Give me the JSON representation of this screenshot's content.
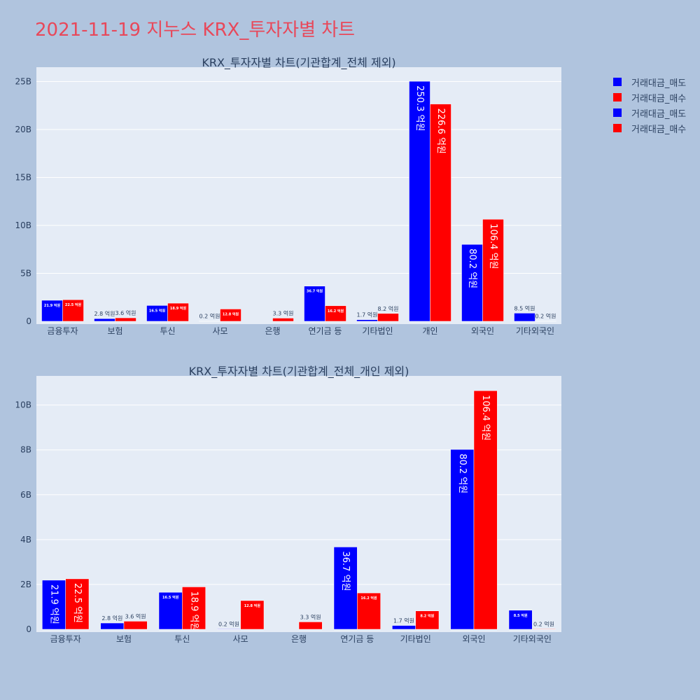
{
  "page_title": "2021-11-19 지누스 KRX_투자자별 차트",
  "colors": {
    "sell": "#0000ff",
    "buy": "#ff0000",
    "plot_bg": "#e5ecf6",
    "page_bg": "#b0c4de"
  },
  "legend": [
    {
      "label": "거래대금_매도",
      "color": "#0000ff"
    },
    {
      "label": "거래대금_매수",
      "color": "#ff0000"
    },
    {
      "label": "거래대금_매도",
      "color": "#0000ff"
    },
    {
      "label": "거래대금_매수",
      "color": "#ff0000"
    }
  ],
  "chart_data": [
    {
      "type": "bar",
      "title": "KRX_투자자별 차트(기관합계_전체 제외)",
      "categories": [
        "금융투자",
        "보험",
        "투신",
        "사모",
        "은행",
        "연기금 등",
        "기타법인",
        "개인",
        "외국인",
        "기타외국인"
      ],
      "ylim": [
        0,
        26.5
      ],
      "yticks": [
        0,
        5,
        10,
        15,
        20,
        25
      ],
      "ytick_labels": [
        "0",
        "5B",
        "10B",
        "15B",
        "20B",
        "25B"
      ],
      "series": [
        {
          "name": "거래대금_매도",
          "color": "#0000ff",
          "values": [
            2.19,
            0.28,
            1.65,
            0.02,
            0.0,
            3.67,
            0.17,
            25.03,
            8.02,
            0.85
          ],
          "labels": [
            "21.9 억원",
            "2.8 억원",
            "16.5 억원",
            "0.2 억원",
            "",
            "36.7 억원",
            "1.7 억원",
            "250.3 억원",
            "80.2 억원",
            "8.5 억원"
          ]
        },
        {
          "name": "거래대금_매수",
          "color": "#ff0000",
          "values": [
            2.25,
            0.36,
            1.89,
            1.28,
            0.33,
            1.62,
            0.82,
            22.66,
            10.64,
            0.02
          ],
          "labels": [
            "22.5 억원",
            "3.6 억원",
            "18.9 억원",
            "12.8 억원",
            "3.3 억원",
            "16.2 억원",
            "8.2 억원",
            "226.6 억원",
            "106.4 억원",
            "0.2 억원"
          ]
        }
      ]
    },
    {
      "type": "bar",
      "title": "KRX_투자자별 차트(기관합계_전체_개인 제외)",
      "categories": [
        "금융투자",
        "보험",
        "투신",
        "사모",
        "은행",
        "연기금 등",
        "기타법인",
        "외국인",
        "기타외국인"
      ],
      "ylim": [
        0,
        11.3
      ],
      "yticks": [
        0,
        2,
        4,
        6,
        8,
        10
      ],
      "ytick_labels": [
        "0",
        "2B",
        "4B",
        "6B",
        "8B",
        "10B"
      ],
      "series": [
        {
          "name": "거래대금_매도",
          "color": "#0000ff",
          "values": [
            2.19,
            0.28,
            1.65,
            0.02,
            0.0,
            3.67,
            0.17,
            8.02,
            0.85
          ],
          "labels": [
            "21.9 억원",
            "2.8 억원",
            "16.5 억원",
            "0.2 억원",
            "",
            "36.7 억원",
            "1.7 억원",
            "80.2 억원",
            "8.5 억원"
          ]
        },
        {
          "name": "거래대금_매수",
          "color": "#ff0000",
          "values": [
            2.25,
            0.36,
            1.89,
            1.28,
            0.33,
            1.62,
            0.82,
            10.64,
            0.02
          ],
          "labels": [
            "22.5 억원",
            "3.6 억원",
            "18.9 억원",
            "12.8 억원",
            "3.3 억원",
            "16.2 억원",
            "8.2 억원",
            "106.4 억원",
            "0.2 억원"
          ]
        }
      ]
    }
  ]
}
